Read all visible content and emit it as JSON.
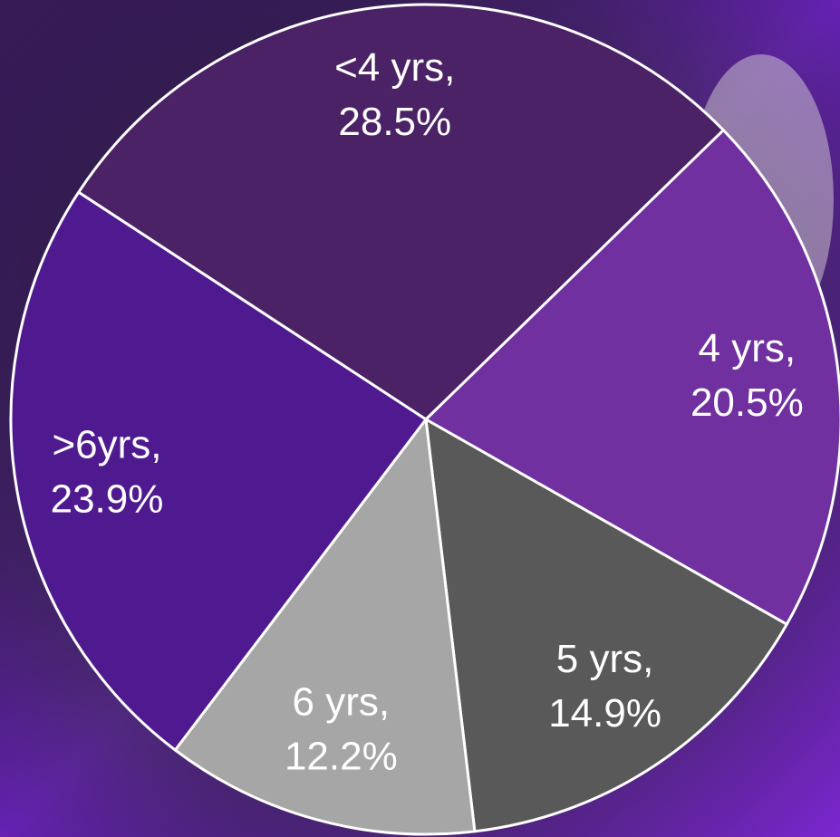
{
  "chart_data": {
    "type": "pie",
    "categories": [
      "<4 yrs,",
      "4 yrs,",
      "5 yrs,",
      "6 yrs,",
      ">6yrs,"
    ],
    "values": [
      28.5,
      20.5,
      14.9,
      12.2,
      23.9
    ],
    "value_labels": [
      "28.5%",
      "20.5%",
      "14.9%",
      "12.2%",
      "23.9%"
    ],
    "colors": [
      "#4b2266",
      "#7030a0",
      "#595959",
      "#a6a6a6",
      "#4f1a8f"
    ]
  }
}
